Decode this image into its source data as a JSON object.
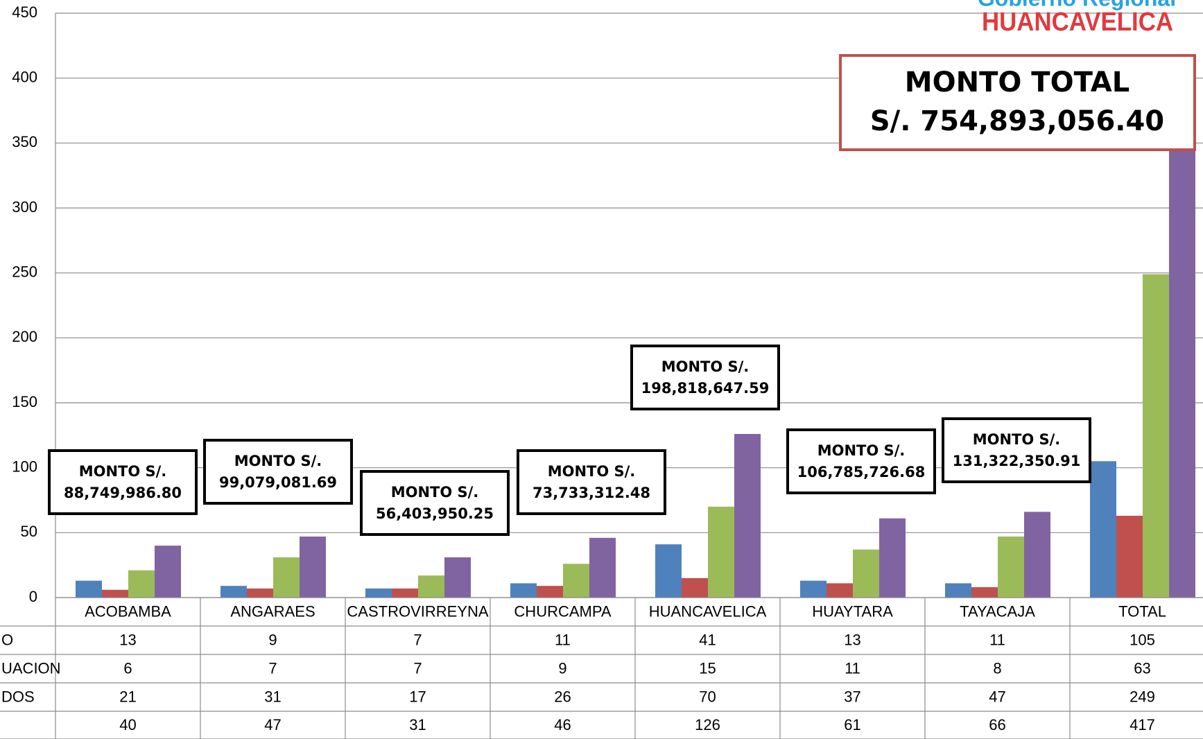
{
  "chart_data": {
    "type": "bar",
    "categories": [
      "ACOBAMBA",
      "ANGARAES",
      "CASTROVIRREYNA",
      "CHURCAMPA",
      "HUANCAVELICA",
      "HUAYTARA",
      "TAYACAJA",
      "TOTAL"
    ],
    "series": [
      {
        "name": "O",
        "color": "#4f81bd",
        "values": [
          13,
          9,
          7,
          11,
          41,
          13,
          11,
          105
        ]
      },
      {
        "name": "UACION",
        "color": "#c0504d",
        "values": [
          6,
          7,
          7,
          9,
          15,
          11,
          8,
          63
        ]
      },
      {
        "name": "DOS",
        "color": "#9bbb59",
        "values": [
          21,
          31,
          17,
          26,
          70,
          37,
          47,
          249
        ]
      },
      {
        "name": null,
        "color": "#8064a2",
        "values": [
          40,
          47,
          31,
          46,
          126,
          61,
          66,
          417
        ]
      }
    ],
    "ylim": [
      0,
      450
    ],
    "yticks": [
      0,
      50,
      100,
      150,
      200,
      250,
      300,
      350,
      400,
      450
    ],
    "grid": true,
    "annotations": [
      {
        "label": "MONTO S/.",
        "amount": "88,749,986.80"
      },
      {
        "label": "MONTO S/.",
        "amount": "99,079,081.69"
      },
      {
        "label": "MONTO S/.",
        "amount": "56,403,950.25"
      },
      {
        "label": "MONTO S/.",
        "amount": "73,733,312.48"
      },
      {
        "label": "MONTO S/.",
        "amount": "198,818,647.59"
      },
      {
        "label": "MONTO S/.",
        "amount": "106,785,726.68"
      },
      {
        "label": "MONTO S/.",
        "amount": "131,322,350.91"
      }
    ],
    "total_box": {
      "label": "MONTO TOTAL",
      "amount": "S/. 754,893,056.40"
    }
  },
  "logo": {
    "line1": "Gobierno Regional",
    "line2": "HUANCAVELICA"
  }
}
